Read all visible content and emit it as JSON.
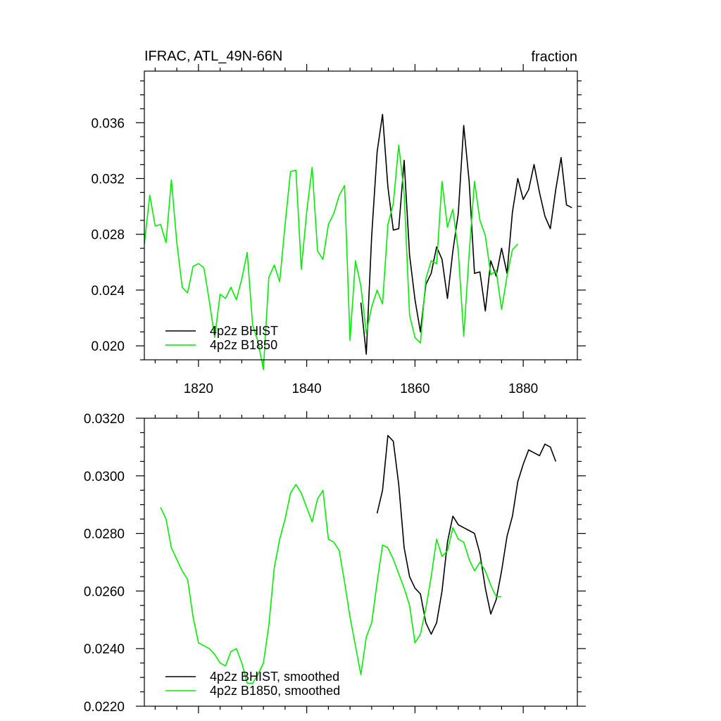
{
  "colors": {
    "bhist": "#000000",
    "b1850": "#00ee00",
    "axis": "#000000"
  },
  "chart_data": [
    {
      "type": "line",
      "title": "IFRAC, ATL_49N-66N",
      "units_label": "fraction",
      "xlim": [
        1810,
        1890
      ],
      "ylim": [
        0.019,
        0.0397
      ],
      "x_ticks": [
        1820,
        1840,
        1860,
        1880
      ],
      "x_tick_labels": [
        "1820",
        "1840",
        "1860",
        "1880"
      ],
      "y_ticks": [
        0.02,
        0.024,
        0.028,
        0.032,
        0.036
      ],
      "y_tick_labels": [
        "0.020",
        "0.024",
        "0.028",
        "0.032",
        "0.036"
      ],
      "grid": false,
      "legend_position": "bottom-left",
      "series": [
        {
          "name": "4p2z BHIST",
          "color": "#000000",
          "x": [
            1850,
            1851,
            1852,
            1853,
            1854,
            1855,
            1856,
            1857,
            1858,
            1859,
            1860,
            1861,
            1862,
            1863,
            1864,
            1865,
            1866,
            1867,
            1868,
            1869,
            1870,
            1871,
            1872,
            1873,
            1874,
            1875,
            1876,
            1877,
            1878,
            1879,
            1880,
            1881,
            1882,
            1883,
            1884,
            1885,
            1886,
            1887,
            1888,
            1889
          ],
          "y": [
            0.0231,
            0.0194,
            0.0279,
            0.0339,
            0.0366,
            0.0314,
            0.0283,
            0.0284,
            0.0333,
            0.0265,
            0.0233,
            0.021,
            0.0244,
            0.0252,
            0.0271,
            0.0262,
            0.0234,
            0.0268,
            0.0295,
            0.0358,
            0.0318,
            0.0252,
            0.0253,
            0.0225,
            0.0261,
            0.025,
            0.027,
            0.0252,
            0.0296,
            0.032,
            0.0305,
            0.0312,
            0.033,
            0.031,
            0.0293,
            0.0284,
            0.0312,
            0.0335,
            0.0301,
            0.0299
          ]
        },
        {
          "name": "4p2z B1850",
          "color": "#00ee00",
          "x": [
            1810,
            1811,
            1812,
            1813,
            1814,
            1815,
            1816,
            1817,
            1818,
            1819,
            1820,
            1821,
            1822,
            1823,
            1824,
            1825,
            1826,
            1827,
            1828,
            1829,
            1830,
            1831,
            1832,
            1833,
            1834,
            1835,
            1836,
            1837,
            1838,
            1839,
            1840,
            1841,
            1842,
            1843,
            1844,
            1845,
            1846,
            1847,
            1848,
            1849,
            1850,
            1851,
            1852,
            1853,
            1854,
            1855,
            1856,
            1857,
            1858,
            1859,
            1860,
            1861,
            1862,
            1863,
            1864,
            1865,
            1866,
            1867,
            1868,
            1869,
            1870,
            1871,
            1872,
            1873,
            1874,
            1875,
            1876,
            1877,
            1878,
            1879
          ],
          "y": [
            0.0273,
            0.0308,
            0.0286,
            0.0287,
            0.0274,
            0.0319,
            0.0274,
            0.0242,
            0.0238,
            0.0257,
            0.0259,
            0.0256,
            0.0232,
            0.0206,
            0.0237,
            0.0234,
            0.0242,
            0.0233,
            0.0248,
            0.0267,
            0.0215,
            0.0203,
            0.0183,
            0.0249,
            0.0258,
            0.0246,
            0.0287,
            0.0325,
            0.0326,
            0.0255,
            0.0296,
            0.0328,
            0.0268,
            0.0262,
            0.0287,
            0.0295,
            0.0308,
            0.0315,
            0.0204,
            0.0261,
            0.0243,
            0.0209,
            0.0228,
            0.024,
            0.023,
            0.0287,
            0.0302,
            0.0344,
            0.0309,
            0.0222,
            0.0206,
            0.0202,
            0.0248,
            0.0261,
            0.0259,
            0.0318,
            0.0285,
            0.0298,
            0.0268,
            0.0207,
            0.0266,
            0.0318,
            0.029,
            0.0279,
            0.0251,
            0.0254,
            0.0226,
            0.025,
            0.0269,
            0.0273
          ]
        }
      ]
    },
    {
      "type": "line",
      "xlim": [
        1810,
        1890
      ],
      "ylim": [
        0.022,
        0.032
      ],
      "x_ticks": [
        1820,
        1840,
        1860,
        1880
      ],
      "y_ticks": [
        0.022,
        0.024,
        0.026,
        0.028,
        0.03,
        0.032
      ],
      "y_tick_labels": [
        "0.0220",
        "0.0240",
        "0.0260",
        "0.0280",
        "0.0300",
        "0.0320"
      ],
      "grid": false,
      "legend_position": "bottom-left",
      "series": [
        {
          "name": "4p2z BHIST, smoothed",
          "color": "#000000",
          "x": [
            1853,
            1854,
            1855,
            1856,
            1857,
            1858,
            1859,
            1860,
            1861,
            1862,
            1863,
            1864,
            1865,
            1866,
            1867,
            1868,
            1869,
            1870,
            1871,
            1872,
            1873,
            1874,
            1875,
            1876,
            1877,
            1878,
            1879,
            1880,
            1881,
            1882,
            1883,
            1884,
            1885,
            1886
          ],
          "y": [
            0.0287,
            0.0295,
            0.0314,
            0.0312,
            0.0297,
            0.0275,
            0.0265,
            0.0261,
            0.0259,
            0.0249,
            0.0245,
            0.0249,
            0.026,
            0.0277,
            0.0286,
            0.0283,
            0.0282,
            0.0281,
            0.028,
            0.0273,
            0.0261,
            0.0252,
            0.0257,
            0.0267,
            0.0279,
            0.0286,
            0.0298,
            0.0304,
            0.0309,
            0.0308,
            0.0307,
            0.0311,
            0.031,
            0.0305
          ]
        },
        {
          "name": "4p2z B1850, smoothed",
          "color": "#00ee00",
          "x": [
            1813,
            1814,
            1815,
            1816,
            1817,
            1818,
            1819,
            1820,
            1821,
            1822,
            1823,
            1824,
            1825,
            1826,
            1827,
            1828,
            1829,
            1830,
            1831,
            1832,
            1833,
            1834,
            1835,
            1836,
            1837,
            1838,
            1839,
            1840,
            1841,
            1842,
            1843,
            1844,
            1845,
            1846,
            1847,
            1848,
            1849,
            1850,
            1851,
            1852,
            1853,
            1854,
            1855,
            1856,
            1857,
            1858,
            1859,
            1860,
            1861,
            1862,
            1863,
            1864,
            1865,
            1866,
            1867,
            1868,
            1869,
            1870,
            1871,
            1872,
            1873,
            1874,
            1875,
            1876
          ],
          "y": [
            0.0289,
            0.0285,
            0.0275,
            0.0271,
            0.0267,
            0.0264,
            0.0251,
            0.0242,
            0.0241,
            0.024,
            0.0238,
            0.0235,
            0.0234,
            0.0239,
            0.024,
            0.0235,
            0.0228,
            0.0228,
            0.0231,
            0.0235,
            0.0248,
            0.0268,
            0.0278,
            0.0285,
            0.0294,
            0.0297,
            0.0294,
            0.0289,
            0.0284,
            0.0292,
            0.0295,
            0.0278,
            0.0277,
            0.0274,
            0.0263,
            0.0251,
            0.0241,
            0.0231,
            0.0244,
            0.0249,
            0.0263,
            0.0276,
            0.0275,
            0.0271,
            0.0266,
            0.0261,
            0.0255,
            0.0242,
            0.0245,
            0.0254,
            0.0265,
            0.0278,
            0.0272,
            0.0274,
            0.0282,
            0.0278,
            0.0277,
            0.0271,
            0.0267,
            0.027,
            0.0267,
            0.0262,
            0.0258,
            0.0258
          ]
        }
      ]
    }
  ]
}
